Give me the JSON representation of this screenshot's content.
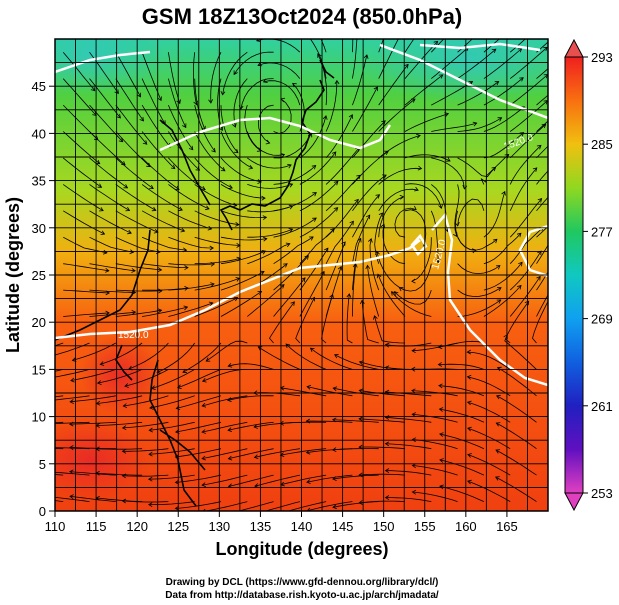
{
  "chart_data": {
    "type": "heatmap",
    "title": "GSM 18Z13Oct2024 (850.0hPa)",
    "xlabel": "Longitude (degrees)",
    "ylabel": "Latitude  (degrees)",
    "xlim": [
      110,
      170
    ],
    "ylim": [
      0,
      50
    ],
    "x_ticks": [
      "110",
      "115",
      "120",
      "125",
      "130",
      "135",
      "140",
      "145",
      "150",
      "155",
      "160",
      "165"
    ],
    "y_ticks": [
      "0",
      "5",
      "10",
      "15",
      "20",
      "25",
      "30",
      "35",
      "40",
      "45"
    ],
    "grid": true,
    "colorbar": {
      "min": 253,
      "max": 293,
      "ticks": [
        "253",
        "261",
        "269",
        "277",
        "285",
        "293"
      ],
      "colors": [
        "#e040c0",
        "#8000c0",
        "#2020c0",
        "#1060e0",
        "#10a0f0",
        "#10c8c0",
        "#20c860",
        "#60d020",
        "#a0d820",
        "#e8e020",
        "#f8b010",
        "#f88010",
        "#f85010",
        "#f02020"
      ]
    },
    "contour_labels": [
      "1520.0",
      "1520.0",
      "1520.0"
    ],
    "field_description": "850 hPa temperature (K) with streamlines and geopotential height contours"
  },
  "credits": {
    "line1": "Drawing by DCL (https://www.gfd-dennou.org/library/dcl/)",
    "line2": "Data from http://database.rish.kyoto-u.ac.jp/arch/jmadata/"
  }
}
